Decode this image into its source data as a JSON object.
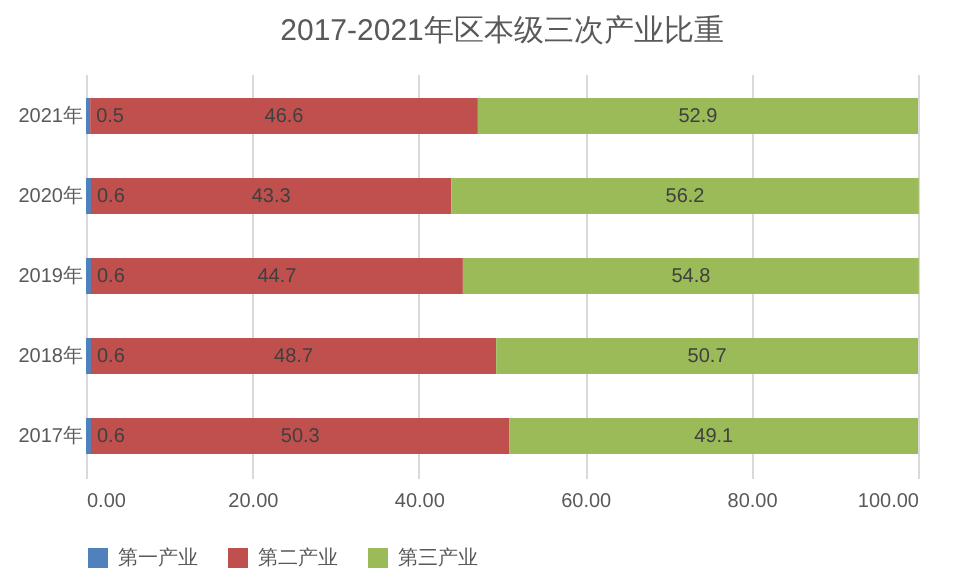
{
  "chart_data": {
    "type": "bar",
    "orientation": "horizontal",
    "stacked": true,
    "title": "2017-2021年区本级三次产业比重",
    "categories": [
      "2021年",
      "2020年",
      "2019年",
      "2018年",
      "2017年"
    ],
    "series": [
      {
        "name": "第一产业",
        "color": "#4f81bd",
        "values": [
          0.5,
          0.6,
          0.6,
          0.6,
          0.6
        ]
      },
      {
        "name": "第二产业",
        "color": "#c0504d",
        "values": [
          46.6,
          43.3,
          44.7,
          48.7,
          50.3
        ]
      },
      {
        "name": "第三产业",
        "color": "#9bbb59",
        "values": [
          52.9,
          56.2,
          54.8,
          50.7,
          49.1
        ]
      }
    ],
    "xlim": [
      0,
      100
    ],
    "xticks": [
      {
        "value": 0,
        "label": "0.00"
      },
      {
        "value": 20,
        "label": "20.00"
      },
      {
        "value": 40,
        "label": "40.00"
      },
      {
        "value": 60,
        "label": "60.00"
      },
      {
        "value": 80,
        "label": "80.00"
      },
      {
        "value": 100,
        "label": "100.00"
      }
    ],
    "grid": "x",
    "legend": "bottom",
    "data_labels": true
  }
}
